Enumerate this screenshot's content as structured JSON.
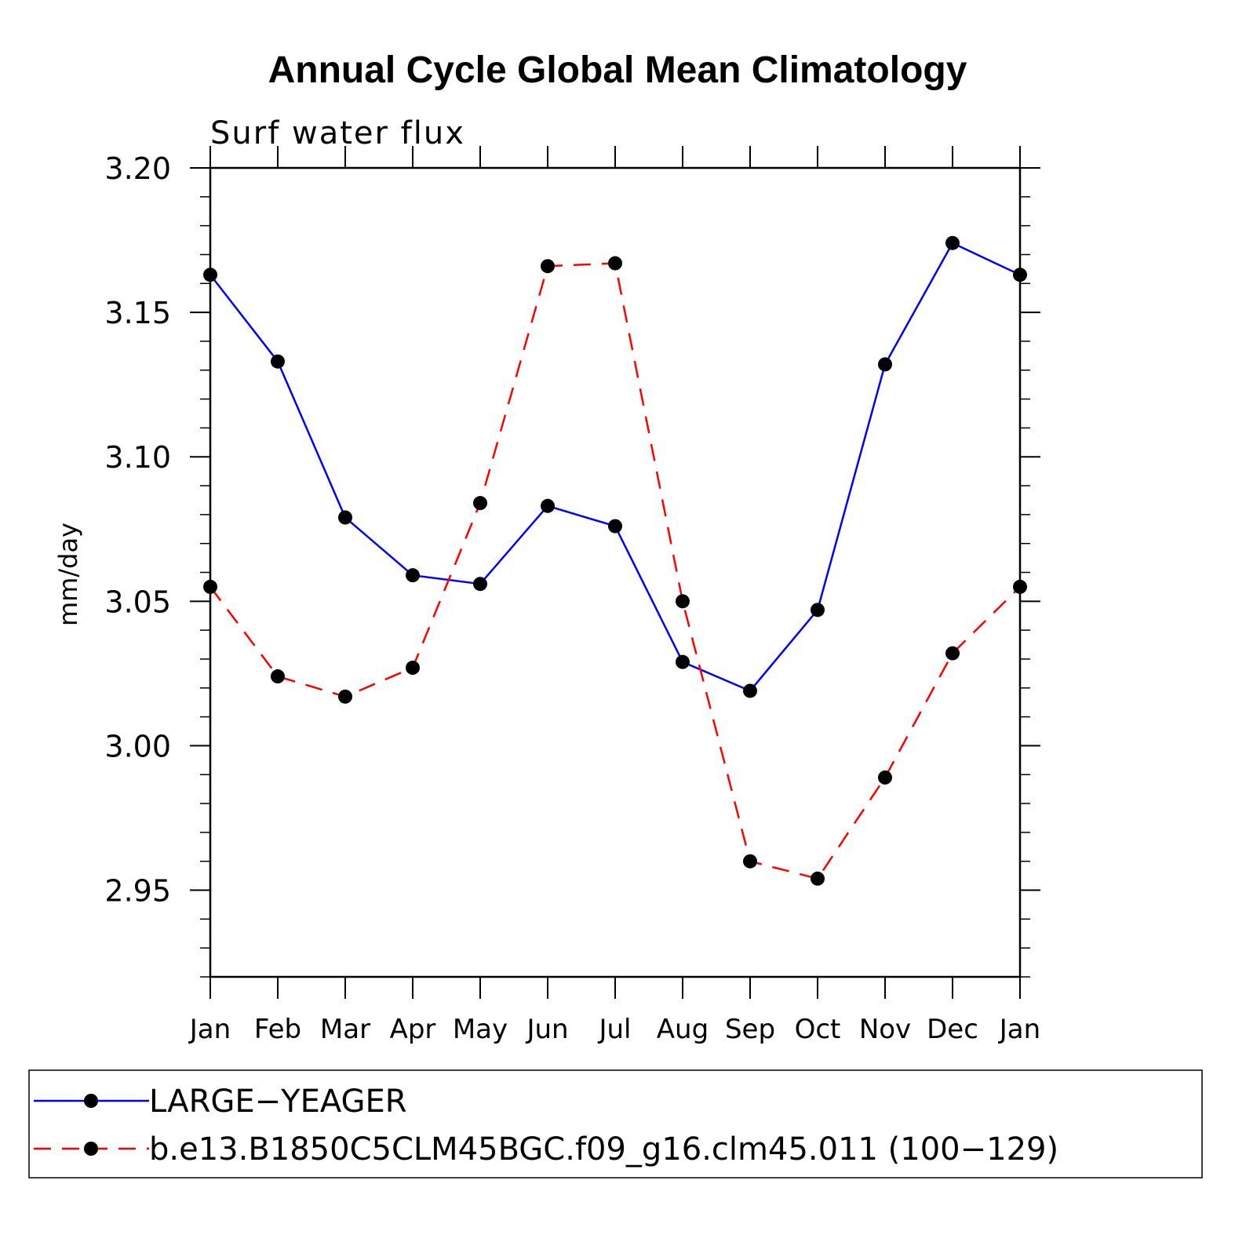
{
  "chart_data": {
    "type": "line",
    "title": "Annual Cycle Global Mean Climatology",
    "subtitle": "Surf  water  flux",
    "xlabel": "",
    "ylabel": "mm/day",
    "categories": [
      "Jan",
      "Feb",
      "Mar",
      "Apr",
      "May",
      "Jun",
      "Jul",
      "Aug",
      "Sep",
      "Oct",
      "Nov",
      "Dec",
      "Jan"
    ],
    "ylim": [
      2.92,
      3.2
    ],
    "yticks": [
      2.95,
      3.0,
      3.05,
      3.1,
      3.15,
      3.2
    ],
    "ytick_labels": [
      "2.95",
      "3.00",
      "3.05",
      "3.10",
      "3.15",
      "3.20"
    ],
    "legend_position": "bottom",
    "series": [
      {
        "name": "LARGE−YEAGER",
        "color": "#0000ff",
        "dash": "solid",
        "values": [
          3.163,
          3.133,
          3.079,
          3.059,
          3.056,
          3.083,
          3.076,
          3.029,
          3.019,
          3.047,
          3.132,
          3.174,
          3.163
        ]
      },
      {
        "name": "b.e13.B1850C5CLM45BGC.f09_g16.clm45.011 (100−129)",
        "color": "#ff0000",
        "dash": "dashed",
        "values": [
          3.055,
          3.024,
          3.017,
          3.027,
          3.084,
          3.166,
          3.167,
          3.05,
          2.96,
          2.954,
          2.989,
          3.032,
          3.055
        ]
      }
    ]
  }
}
